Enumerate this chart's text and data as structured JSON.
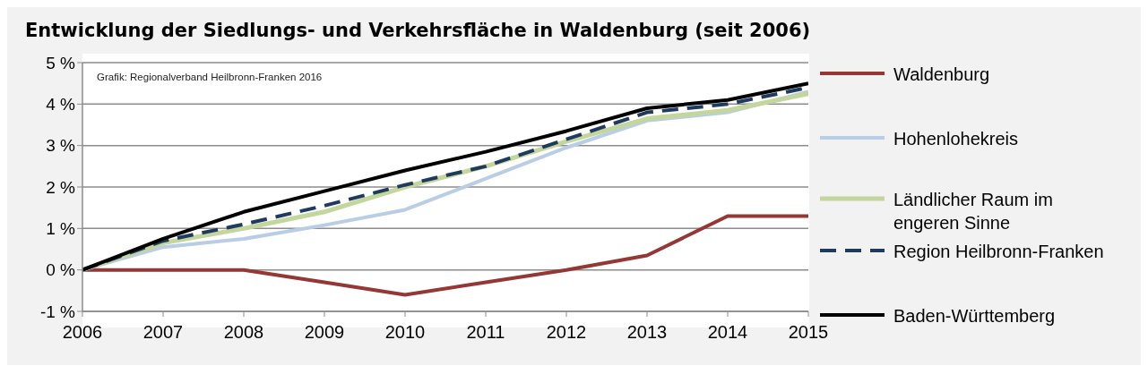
{
  "chart_data": {
    "type": "line",
    "title": "Entwicklung der Siedlungs- und Verkehrsfläche in Waldenburg (seit 2006)",
    "categories": [
      "2006",
      "2007",
      "2008",
      "2009",
      "2010",
      "2011",
      "2012",
      "2013",
      "2014",
      "2015"
    ],
    "series": [
      {
        "name": "Waldenburg",
        "color": "#953735",
        "values": [
          0,
          0,
          0,
          -0.3,
          -0.6,
          -0.3,
          0,
          0.35,
          1.3,
          1.3
        ]
      },
      {
        "name": "Hohenlohekreis",
        "color": "#b9cde5",
        "values": [
          0,
          0.55,
          0.75,
          1.08,
          1.45,
          2.2,
          2.95,
          3.6,
          3.8,
          4.3
        ]
      },
      {
        "name": "Ländlicher Raum im engeren Sinne",
        "color": "#c3d69b",
        "values": [
          0,
          0.65,
          1.0,
          1.4,
          2.0,
          2.5,
          3.1,
          3.65,
          3.85,
          4.25
        ]
      },
      {
        "name": "Region Heilbronn-Franken",
        "color": "#1f3a5f",
        "line_style": "dashed",
        "values": [
          0,
          0.7,
          1.1,
          1.55,
          2.05,
          2.5,
          3.15,
          3.8,
          4.0,
          4.4
        ]
      },
      {
        "name": "Baden-Württemberg",
        "color": "#000000",
        "values": [
          0,
          0.75,
          1.4,
          1.9,
          2.4,
          2.85,
          3.35,
          3.9,
          4.1,
          4.5
        ]
      }
    ],
    "ylim": [
      -1,
      5
    ],
    "yticks": [
      {
        "value": -1,
        "label": "-1 %"
      },
      {
        "value": 0,
        "label": "0 %"
      },
      {
        "value": 1,
        "label": "1 %"
      },
      {
        "value": 2,
        "label": "2 %"
      },
      {
        "value": 3,
        "label": "3 %"
      },
      {
        "value": 4,
        "label": "4 %"
      },
      {
        "value": 5,
        "label": "5 %"
      }
    ],
    "annotations": [
      "Grafik: Regionalverband Heilbronn-Franken 2016"
    ],
    "grid": "y",
    "legend": "right",
    "marker": "none",
    "line_style": "solid"
  }
}
